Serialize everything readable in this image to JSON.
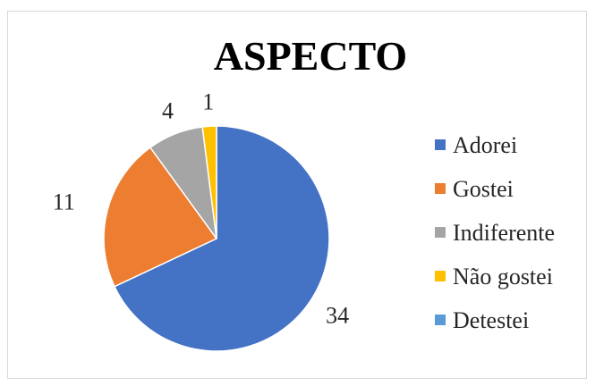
{
  "chart_data": {
    "type": "pie",
    "title": "ASPECTO",
    "categories": [
      "Adorei",
      "Gostei",
      "Indiferente",
      "Não gostei",
      "Detestei"
    ],
    "values": [
      34,
      11,
      4,
      1,
      0
    ],
    "data_labels": [
      "34",
      "11",
      "4",
      "1",
      ""
    ],
    "colors": [
      "#4472c4",
      "#ed7d31",
      "#a5a5a5",
      "#ffc000",
      "#5b9bd5"
    ],
    "legend_position": "right"
  }
}
